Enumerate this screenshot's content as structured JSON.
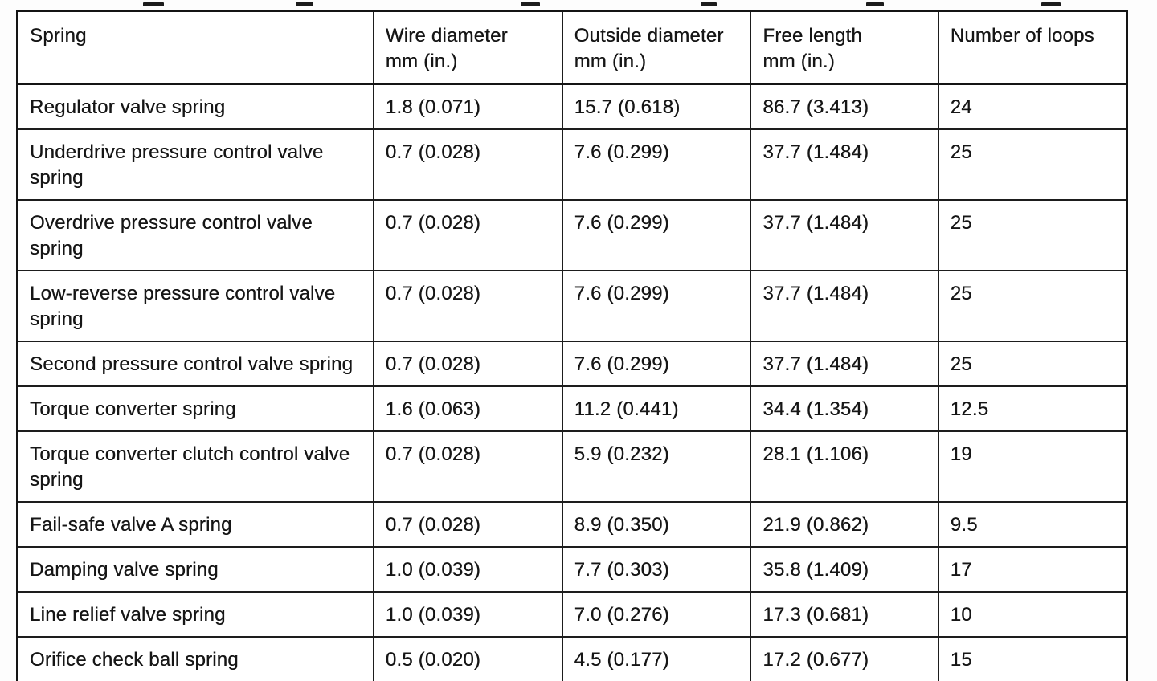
{
  "colors": {
    "ink": "#161616",
    "paper": "#ffffff"
  },
  "table": {
    "columns": [
      {
        "label": "Spring",
        "sub": ""
      },
      {
        "label": "Wire diameter",
        "sub": "mm (in.)"
      },
      {
        "label": "Outside diameter",
        "sub": "mm (in.)"
      },
      {
        "label": "Free length",
        "sub": "mm (in.)"
      },
      {
        "label": "Number of loops",
        "sub": ""
      }
    ],
    "rows": [
      [
        "Regulator valve spring",
        "1.8 (0.071)",
        "15.7 (0.618)",
        "86.7 (3.413)",
        "24"
      ],
      [
        "Underdrive pressure control valve spring",
        "0.7 (0.028)",
        "7.6 (0.299)",
        "37.7 (1.484)",
        "25"
      ],
      [
        "Overdrive pressure control valve spring",
        "0.7 (0.028)",
        "7.6 (0.299)",
        "37.7 (1.484)",
        "25"
      ],
      [
        "Low-reverse pressure control valve spring",
        "0.7 (0.028)",
        "7.6 (0.299)",
        "37.7 (1.484)",
        "25"
      ],
      [
        "Second pressure control valve spring",
        "0.7 (0.028)",
        "7.6 (0.299)",
        "37.7 (1.484)",
        "25"
      ],
      [
        "Torque converter spring",
        "1.6 (0.063)",
        "11.2 (0.441)",
        "34.4 (1.354)",
        "12.5"
      ],
      [
        "Torque converter clutch control valve spring",
        "0.7 (0.028)",
        "5.9 (0.232)",
        "28.1 (1.106)",
        "19"
      ],
      [
        "Fail-safe valve A spring",
        "0.7 (0.028)",
        "8.9 (0.350)",
        "21.9 (0.862)",
        "9.5"
      ],
      [
        "Damping valve spring",
        "1.0 (0.039)",
        "7.7 (0.303)",
        "35.8 (1.409)",
        "17"
      ],
      [
        "Line relief valve spring",
        "1.0 (0.039)",
        "7.0 (0.276)",
        "17.3 (0.681)",
        "10"
      ],
      [
        "Orifice check ball spring",
        "0.5 (0.020)",
        "4.5 (0.177)",
        "17.2 (0.677)",
        "15"
      ]
    ],
    "cell_names": [
      "cell-spring",
      "cell-wire-diameter",
      "cell-outside-diameter",
      "cell-free-length",
      "cell-number-of-loops"
    ]
  }
}
